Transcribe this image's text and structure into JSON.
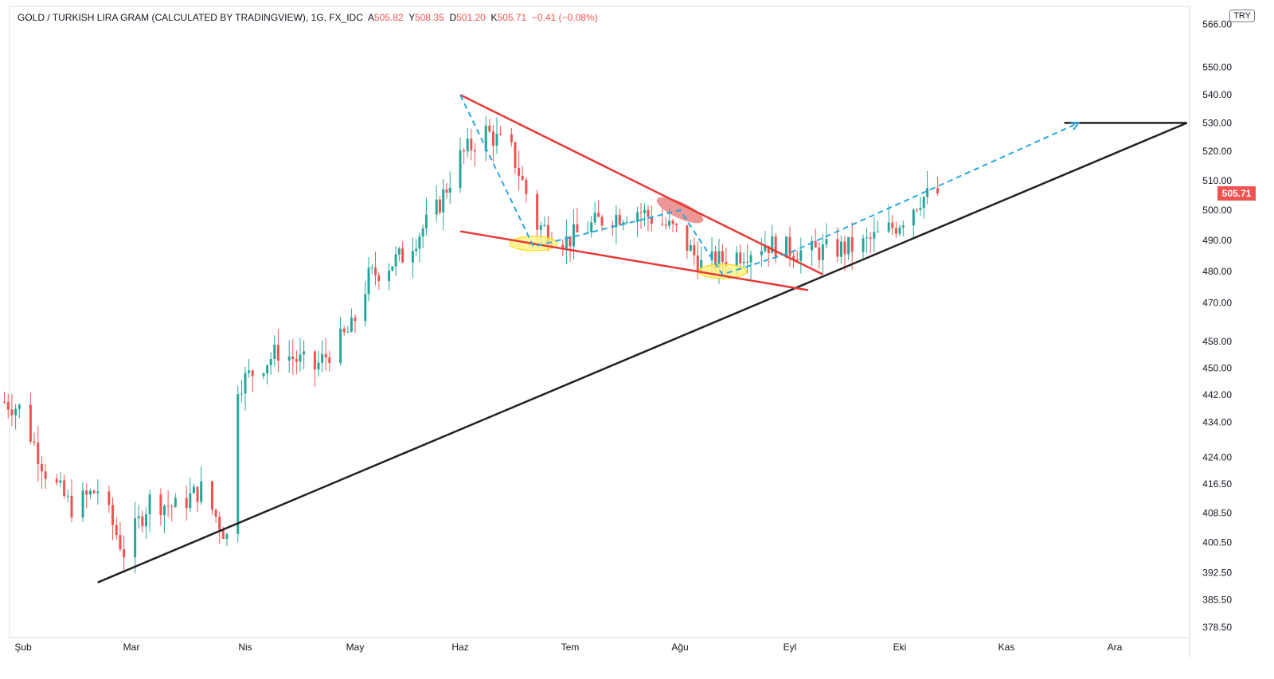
{
  "header": {
    "title": "GOLD / TURKISH LIRA GRAM (CALCULATED BY TRADINGVIEW), 1G, FX_IDC",
    "o_label": "A",
    "o_value": "505.82",
    "h_label": "Y",
    "h_value": "508.35",
    "l_label": "D",
    "l_value": "501.20",
    "c_label": "K",
    "c_value": "505.71",
    "change": "−0.41 (−0.08%)"
  },
  "currency": "TRY",
  "current_price": "505.71",
  "colors": {
    "up": "#26a69a",
    "down": "#ef5350",
    "trend_black": "#222222",
    "wedge_red": "#e53935",
    "path_blue": "#29a8e0"
  },
  "chart_data": {
    "type": "candlestick",
    "title": "GOLD / TURKISH LIRA GRAM (CALCULATED BY TRADINGVIEW), 1G, FX_IDC",
    "scale": "log",
    "ylim": [
      378.5,
      565
    ],
    "y_ticks": [
      "566.00",
      "550.00",
      "540.00",
      "530.00",
      "520.00",
      "510.00",
      "500.00",
      "490.00",
      "480.00",
      "470.00",
      "458.00",
      "450.00",
      "442.00",
      "434.00",
      "424.00",
      "416.50",
      "408.50",
      "400.50",
      "392.50",
      "385.50",
      "378.50"
    ],
    "x_ticks": [
      "Şub",
      "Mar",
      "Nis",
      "May",
      "Haz",
      "Tem",
      "Ağu",
      "Eyl",
      "Eki",
      "Kas",
      "Ara"
    ],
    "x_tick_dates": [
      "2020-02-01",
      "2020-03-01",
      "2020-04-01",
      "2020-05-01",
      "2020-06-01",
      "2020-07-01",
      "2020-08-01",
      "2020-09-01",
      "2020-10-01",
      "2020-11-01",
      "2020-12-01"
    ],
    "price_anchors": [
      [
        "2020-01-27",
        440
      ],
      [
        "2020-01-31",
        438
      ],
      [
        "2020-02-07",
        420
      ],
      [
        "2020-02-14",
        410
      ],
      [
        "2020-02-21",
        415
      ],
      [
        "2020-02-28",
        398
      ],
      [
        "2020-03-06",
        412
      ],
      [
        "2020-03-13",
        410
      ],
      [
        "2020-03-20",
        415
      ],
      [
        "2020-03-27",
        402
      ],
      [
        "2020-03-30",
        445
      ],
      [
        "2020-04-10",
        455
      ],
      [
        "2020-04-20",
        450
      ],
      [
        "2020-04-30",
        462
      ],
      [
        "2020-05-05",
        478
      ],
      [
        "2020-05-15",
        485
      ],
      [
        "2020-05-25",
        500
      ],
      [
        "2020-06-01",
        518
      ],
      [
        "2020-06-08",
        527
      ],
      [
        "2020-06-15",
        520
      ],
      [
        "2020-06-22",
        495
      ],
      [
        "2020-06-30",
        490
      ],
      [
        "2020-07-10",
        497
      ],
      [
        "2020-07-20",
        500
      ],
      [
        "2020-07-31",
        493
      ],
      [
        "2020-08-07",
        482
      ],
      [
        "2020-08-14",
        484
      ],
      [
        "2020-08-25",
        489
      ],
      [
        "2020-09-05",
        486
      ],
      [
        "2020-09-20",
        488
      ],
      [
        "2020-09-30",
        495
      ],
      [
        "2020-10-07",
        504
      ],
      [
        "2020-10-12",
        505.71
      ]
    ],
    "annotations": {
      "support_trendline": [
        [
          "2020-02-21",
          390
        ],
        [
          "2020-12-21",
          530
        ]
      ],
      "resistance_line": [
        [
          "2020-11-17",
          530
        ],
        [
          "2020-12-21",
          530
        ]
      ],
      "wedge_upper": [
        [
          "2020-06-01",
          540
        ],
        [
          "2020-09-10",
          479
        ]
      ],
      "wedge_lower": [
        [
          "2020-06-01",
          493
        ],
        [
          "2020-09-06",
          474
        ]
      ],
      "zigzag": [
        [
          "2020-06-01",
          540
        ],
        [
          "2020-06-21",
          488
        ],
        [
          "2020-08-01",
          500
        ],
        [
          "2020-08-13",
          479
        ],
        [
          "2020-09-01",
          486
        ],
        [
          "2020-11-21",
          530
        ]
      ],
      "lows_marked": [
        [
          "2020-06-21",
          489
        ],
        [
          "2020-08-13",
          480
        ]
      ],
      "breakout_marked": [
        [
          "2020-08-01",
          500
        ]
      ]
    }
  }
}
